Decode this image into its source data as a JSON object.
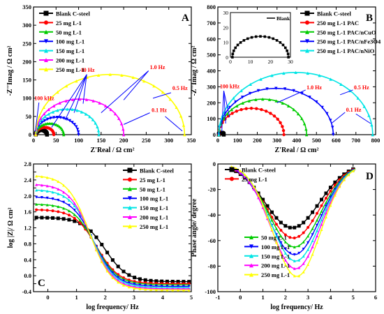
{
  "figure": {
    "panels": [
      {
        "letter": "A",
        "type": "line",
        "xlabel": "Z'Real / Ω cm²",
        "ylabel": "-Z''Imag / Ω cm²",
        "xlim": [
          0,
          350
        ],
        "ylim": [
          0,
          350
        ],
        "xticks": [
          0,
          50,
          100,
          150,
          200,
          250,
          300,
          350
        ],
        "yticks": [
          0,
          50,
          100,
          150,
          200,
          250,
          300,
          350
        ],
        "series": [
          {
            "name": "Blank C-steel",
            "color": "#000000",
            "marker": "square",
            "rs": 5,
            "rct": 25
          },
          {
            "name": "25 mg L-1",
            "color": "#ff0000",
            "marker": "circle",
            "rs": 5,
            "rct": 40
          },
          {
            "name": "50 mg L-1",
            "color": "#00cc00",
            "marker": "triangle-up",
            "rs": 5,
            "rct": 62
          },
          {
            "name": "100 mg L-1",
            "color": "#0000ff",
            "marker": "triangle-down",
            "rs": 5,
            "rct": 95
          },
          {
            "name": "150 mg L-1",
            "color": "#00e5e5",
            "marker": "triangle-up",
            "rs": 5,
            "rct": 140
          },
          {
            "name": "200 mg L-1",
            "color": "#ff00ff",
            "marker": "triangle-up",
            "rs": 5,
            "rct": 195
          },
          {
            "name": "250 mg L-1",
            "color": "#ffff00",
            "marker": "triangle-up",
            "rs": 5,
            "rct": 330
          }
        ],
        "annotations": [
          "100 kHz",
          "10 Hz",
          "1.0 Hz",
          "0.5 Hz",
          "0.1 Hz"
        ]
      },
      {
        "letter": "B",
        "type": "line",
        "xlabel": "Z'Real / Ω cm²",
        "ylabel": "-Z''Imag / Ω cm²",
        "xlim": [
          0,
          800
        ],
        "ylim": [
          0,
          800
        ],
        "xticks": [
          0,
          100,
          200,
          300,
          400,
          500,
          600,
          700,
          800
        ],
        "yticks": [
          0,
          100,
          200,
          300,
          400,
          500,
          600,
          700,
          800
        ],
        "series": [
          {
            "name": "Blank C-steel",
            "color": "#000000",
            "marker": "square",
            "rs": 5,
            "rct": 25
          },
          {
            "name": "250 mg L-1 PAC",
            "color": "#ff0000",
            "marker": "circle",
            "rs": 5,
            "rct": 330
          },
          {
            "name": "250 mg L-1 PAC/nCuO",
            "color": "#00cc00",
            "marker": "triangle-up",
            "rs": 5,
            "rct": 445
          },
          {
            "name": "250 mg L-1 PAC/nFe3O4",
            "color": "#0000ff",
            "marker": "triangle-down",
            "rs": 5,
            "rct": 580
          },
          {
            "name": "250 mg L-1 PAC/nNiO",
            "color": "#00e5e5",
            "marker": "triangle-up",
            "rs": 5,
            "rct": 780
          }
        ],
        "annotations": [
          "100 kHz",
          "1.0 Hz",
          "0.5 Hz",
          "0.1 Hz"
        ],
        "inset": {
          "legend": "Blank",
          "xlim": [
            0,
            30
          ],
          "ylim": [
            0,
            30
          ],
          "xticks": [
            0,
            10,
            20,
            30
          ],
          "yticks": [
            0,
            10,
            20,
            30
          ],
          "rs": 1,
          "rct": 28
        }
      },
      {
        "letter": "C",
        "type": "line",
        "xlabel": "log frequency/ Hz",
        "ylabel": "log |Z|/ Ω cm²",
        "xlim": [
          -0.5,
          5
        ],
        "ylim": [
          -0.4,
          2.8
        ],
        "xticks": [
          0,
          1,
          2,
          3,
          4,
          5
        ],
        "yticks": [
          -0.4,
          -0.2,
          0.0,
          0.2,
          0.4,
          0.6,
          0.8,
          1.0,
          1.2,
          1.4,
          1.6,
          1.8,
          2.0,
          2.2,
          2.4,
          2.6,
          2.8
        ],
        "ytick_labels": [
          "-0.4",
          "",
          "0.0",
          "",
          "0.4",
          "",
          "0.8",
          "",
          "1.2",
          "",
          "1.6",
          "",
          "2.0",
          "",
          "2.4",
          "",
          "2.8"
        ],
        "series": [
          {
            "name": "Blank C-steel",
            "color": "#000000",
            "marker": "square",
            "high": 1.46,
            "low": -0.15,
            "fc": 2.0
          },
          {
            "name": "25 mg L-1",
            "color": "#ff0000",
            "marker": "circle",
            "high": 1.66,
            "low": -0.2,
            "fc": 1.7
          },
          {
            "name": "50 mg L-1",
            "color": "#00cc00",
            "marker": "triangle-up",
            "high": 1.8,
            "low": -0.23,
            "fc": 1.65
          },
          {
            "name": "100 mg L-1",
            "color": "#0000ff",
            "marker": "triangle-down",
            "high": 1.98,
            "low": -0.27,
            "fc": 1.6
          },
          {
            "name": "150 mg L-1",
            "color": "#00e5e5",
            "marker": "triangle-up",
            "high": 2.16,
            "low": -0.3,
            "fc": 1.55
          },
          {
            "name": "200 mg L-1",
            "color": "#ff00ff",
            "marker": "triangle-up",
            "high": 2.3,
            "low": -0.33,
            "fc": 1.5
          },
          {
            "name": "250 mg L-1",
            "color": "#ffff00",
            "marker": "triangle-up",
            "high": 2.52,
            "low": -0.36,
            "fc": 1.45
          }
        ]
      },
      {
        "letter": "D",
        "type": "line",
        "xlabel": "log frequency/ Hz",
        "ylabel": "Phase angle/ degree",
        "xlim": [
          -1,
          6
        ],
        "ylim": [
          -100,
          0
        ],
        "xticks": [
          -1,
          0,
          1,
          2,
          3,
          4,
          5,
          6
        ],
        "yticks": [
          -100,
          -80,
          -60,
          -40,
          -20,
          0
        ],
        "series": [
          {
            "name": "Blank C-steel",
            "color": "#000000",
            "marker": "square",
            "peak": -50,
            "center": 2.3,
            "width": 1.7
          },
          {
            "name": "25 mg L-1",
            "color": "#ff0000",
            "marker": "circle",
            "peak": -58,
            "center": 2.35,
            "width": 1.65
          },
          {
            "name": "50 mg L-1",
            "color": "#00cc00",
            "marker": "triangle-up",
            "peak": -65,
            "center": 2.4,
            "width": 1.6
          },
          {
            "name": "100 mg L-1",
            "color": "#0000ff",
            "marker": "triangle-down",
            "peak": -71,
            "center": 2.4,
            "width": 1.6
          },
          {
            "name": "150 mg L-1",
            "color": "#00e5e5",
            "marker": "triangle-up",
            "peak": -76,
            "center": 2.45,
            "width": 1.55
          },
          {
            "name": "200 mg L-1",
            "color": "#ff00ff",
            "marker": "triangle-up",
            "peak": -82,
            "center": 2.45,
            "width": 1.55
          },
          {
            "name": "250 mg L-1",
            "color": "#ffff00",
            "marker": "triangle-up",
            "peak": -88,
            "center": 2.5,
            "width": 1.5
          }
        ]
      }
    ]
  }
}
